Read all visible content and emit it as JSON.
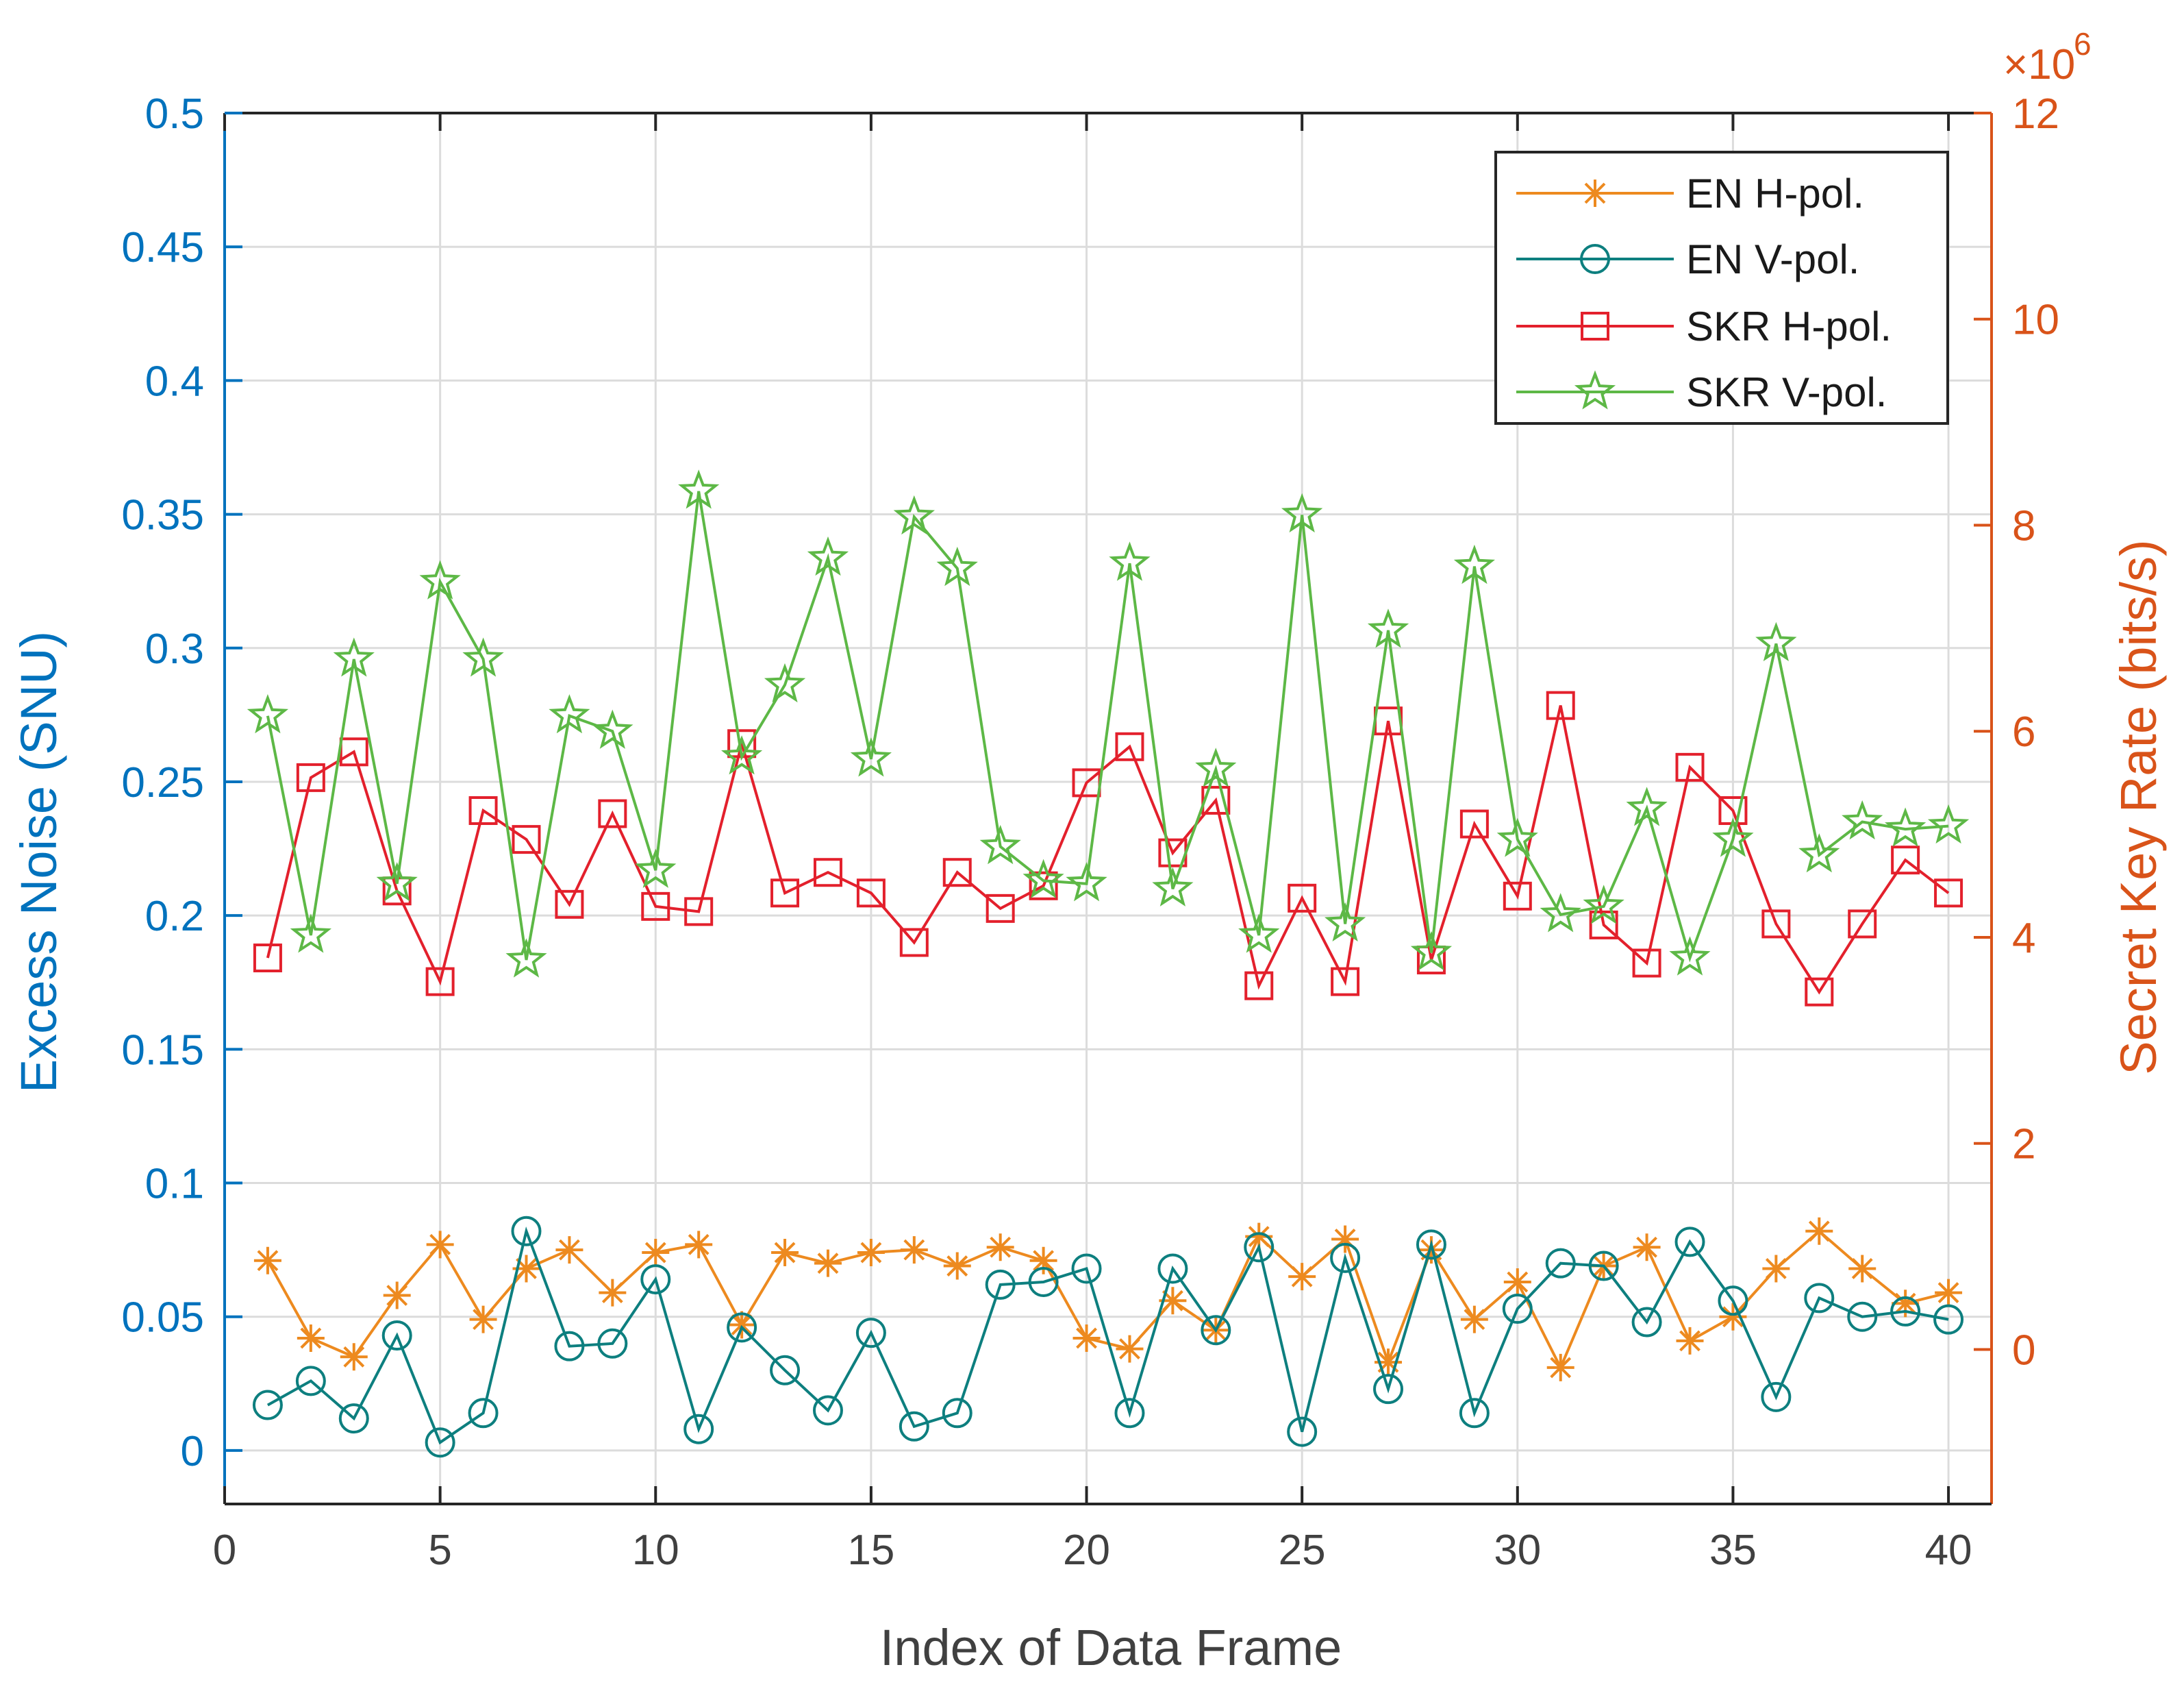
{
  "chart_data": {
    "type": "line",
    "xlabel": "Index of Data Frame",
    "ylabel_left": "Excess Noise (SNU)",
    "ylabel_right": "Secret Key Rate (bits/s)",
    "right_axis_multiplier": "×10",
    "right_axis_exponent": "6",
    "xlim": [
      0,
      41
    ],
    "ylim_left": [
      -0.02,
      0.5
    ],
    "ylim_right": [
      -1.5,
      12
    ],
    "x_ticks": [
      0,
      5,
      10,
      15,
      20,
      25,
      30,
      35,
      40
    ],
    "x_tick_labels": [
      "0",
      "5",
      "10",
      "15",
      "20",
      "25",
      "30",
      "35",
      "40"
    ],
    "y_left_ticks": [
      0,
      0.05,
      0.1,
      0.15,
      0.2,
      0.25,
      0.3,
      0.35,
      0.4,
      0.45,
      0.5
    ],
    "y_left_tick_labels": [
      "0",
      "0.05",
      "0.1",
      "0.15",
      "0.2",
      "0.25",
      "0.3",
      "0.35",
      "0.4",
      "0.45",
      "0.5"
    ],
    "y_right_ticks": [
      0,
      2,
      4,
      6,
      8,
      10,
      12
    ],
    "y_right_tick_labels": [
      "0",
      "2",
      "4",
      "6",
      "8",
      "10",
      "12"
    ],
    "grid": true,
    "legend_position": "top-right",
    "x": [
      1,
      2,
      3,
      4,
      5,
      6,
      7,
      8,
      9,
      10,
      11,
      12,
      13,
      14,
      15,
      16,
      17,
      18,
      19,
      20,
      21,
      22,
      23,
      24,
      25,
      26,
      27,
      28,
      29,
      30,
      31,
      32,
      33,
      34,
      35,
      36,
      37,
      38,
      39,
      40
    ],
    "series": [
      {
        "name": "EN H-pol.",
        "axis": "left",
        "color": "#ED8A1F",
        "marker": "asterisk",
        "values": [
          0.071,
          0.042,
          0.035,
          0.058,
          0.077,
          0.049,
          0.068,
          0.075,
          0.059,
          0.074,
          0.077,
          0.047,
          0.074,
          0.07,
          0.074,
          0.075,
          0.069,
          0.076,
          0.071,
          0.042,
          0.038,
          0.056,
          0.045,
          0.08,
          0.065,
          0.079,
          0.033,
          0.075,
          0.049,
          0.063,
          0.031,
          0.069,
          0.076,
          0.041,
          0.05,
          0.068,
          0.082,
          0.068,
          0.055,
          0.059
        ]
      },
      {
        "name": "EN V-pol.",
        "axis": "left",
        "color": "#0D7F7F",
        "marker": "circle",
        "values": [
          0.017,
          0.026,
          0.012,
          0.043,
          0.003,
          0.014,
          0.082,
          0.039,
          0.04,
          0.064,
          0.008,
          0.046,
          0.03,
          0.015,
          0.044,
          0.009,
          0.014,
          0.062,
          0.063,
          0.068,
          0.014,
          0.068,
          0.045,
          0.076,
          0.007,
          0.072,
          0.023,
          0.077,
          0.014,
          0.053,
          0.07,
          0.069,
          0.048,
          0.078,
          0.056,
          0.02,
          0.057,
          0.05,
          0.052,
          0.049
        ]
      },
      {
        "name": "SKR H-pol.",
        "axis": "right",
        "color": "#E3202C",
        "marker": "square",
        "values": [
          3.8,
          5.55,
          5.8,
          4.45,
          3.57,
          5.23,
          4.95,
          4.32,
          5.2,
          4.3,
          4.25,
          5.88,
          4.43,
          4.63,
          4.43,
          3.95,
          4.63,
          4.28,
          4.5,
          5.5,
          5.85,
          4.82,
          5.33,
          3.53,
          4.38,
          3.57,
          6.1,
          3.78,
          5.1,
          4.4,
          6.25,
          4.12,
          3.75,
          5.65,
          5.23,
          4.13,
          3.47,
          4.13,
          4.75,
          4.43
        ]
      },
      {
        "name": "SKR V-pol.",
        "axis": "right",
        "color": "#5DB846",
        "marker": "star",
        "values": [
          6.15,
          4.02,
          6.7,
          4.52,
          7.45,
          6.7,
          3.78,
          6.15,
          6.0,
          4.65,
          8.33,
          5.75,
          6.45,
          7.68,
          5.73,
          8.08,
          7.58,
          4.88,
          4.55,
          4.52,
          7.63,
          4.47,
          5.63,
          4.02,
          8.1,
          4.13,
          6.98,
          3.85,
          7.6,
          4.95,
          4.22,
          4.3,
          5.25,
          3.8,
          4.95,
          6.85,
          4.8,
          5.12,
          5.05,
          5.08
        ]
      }
    ]
  }
}
